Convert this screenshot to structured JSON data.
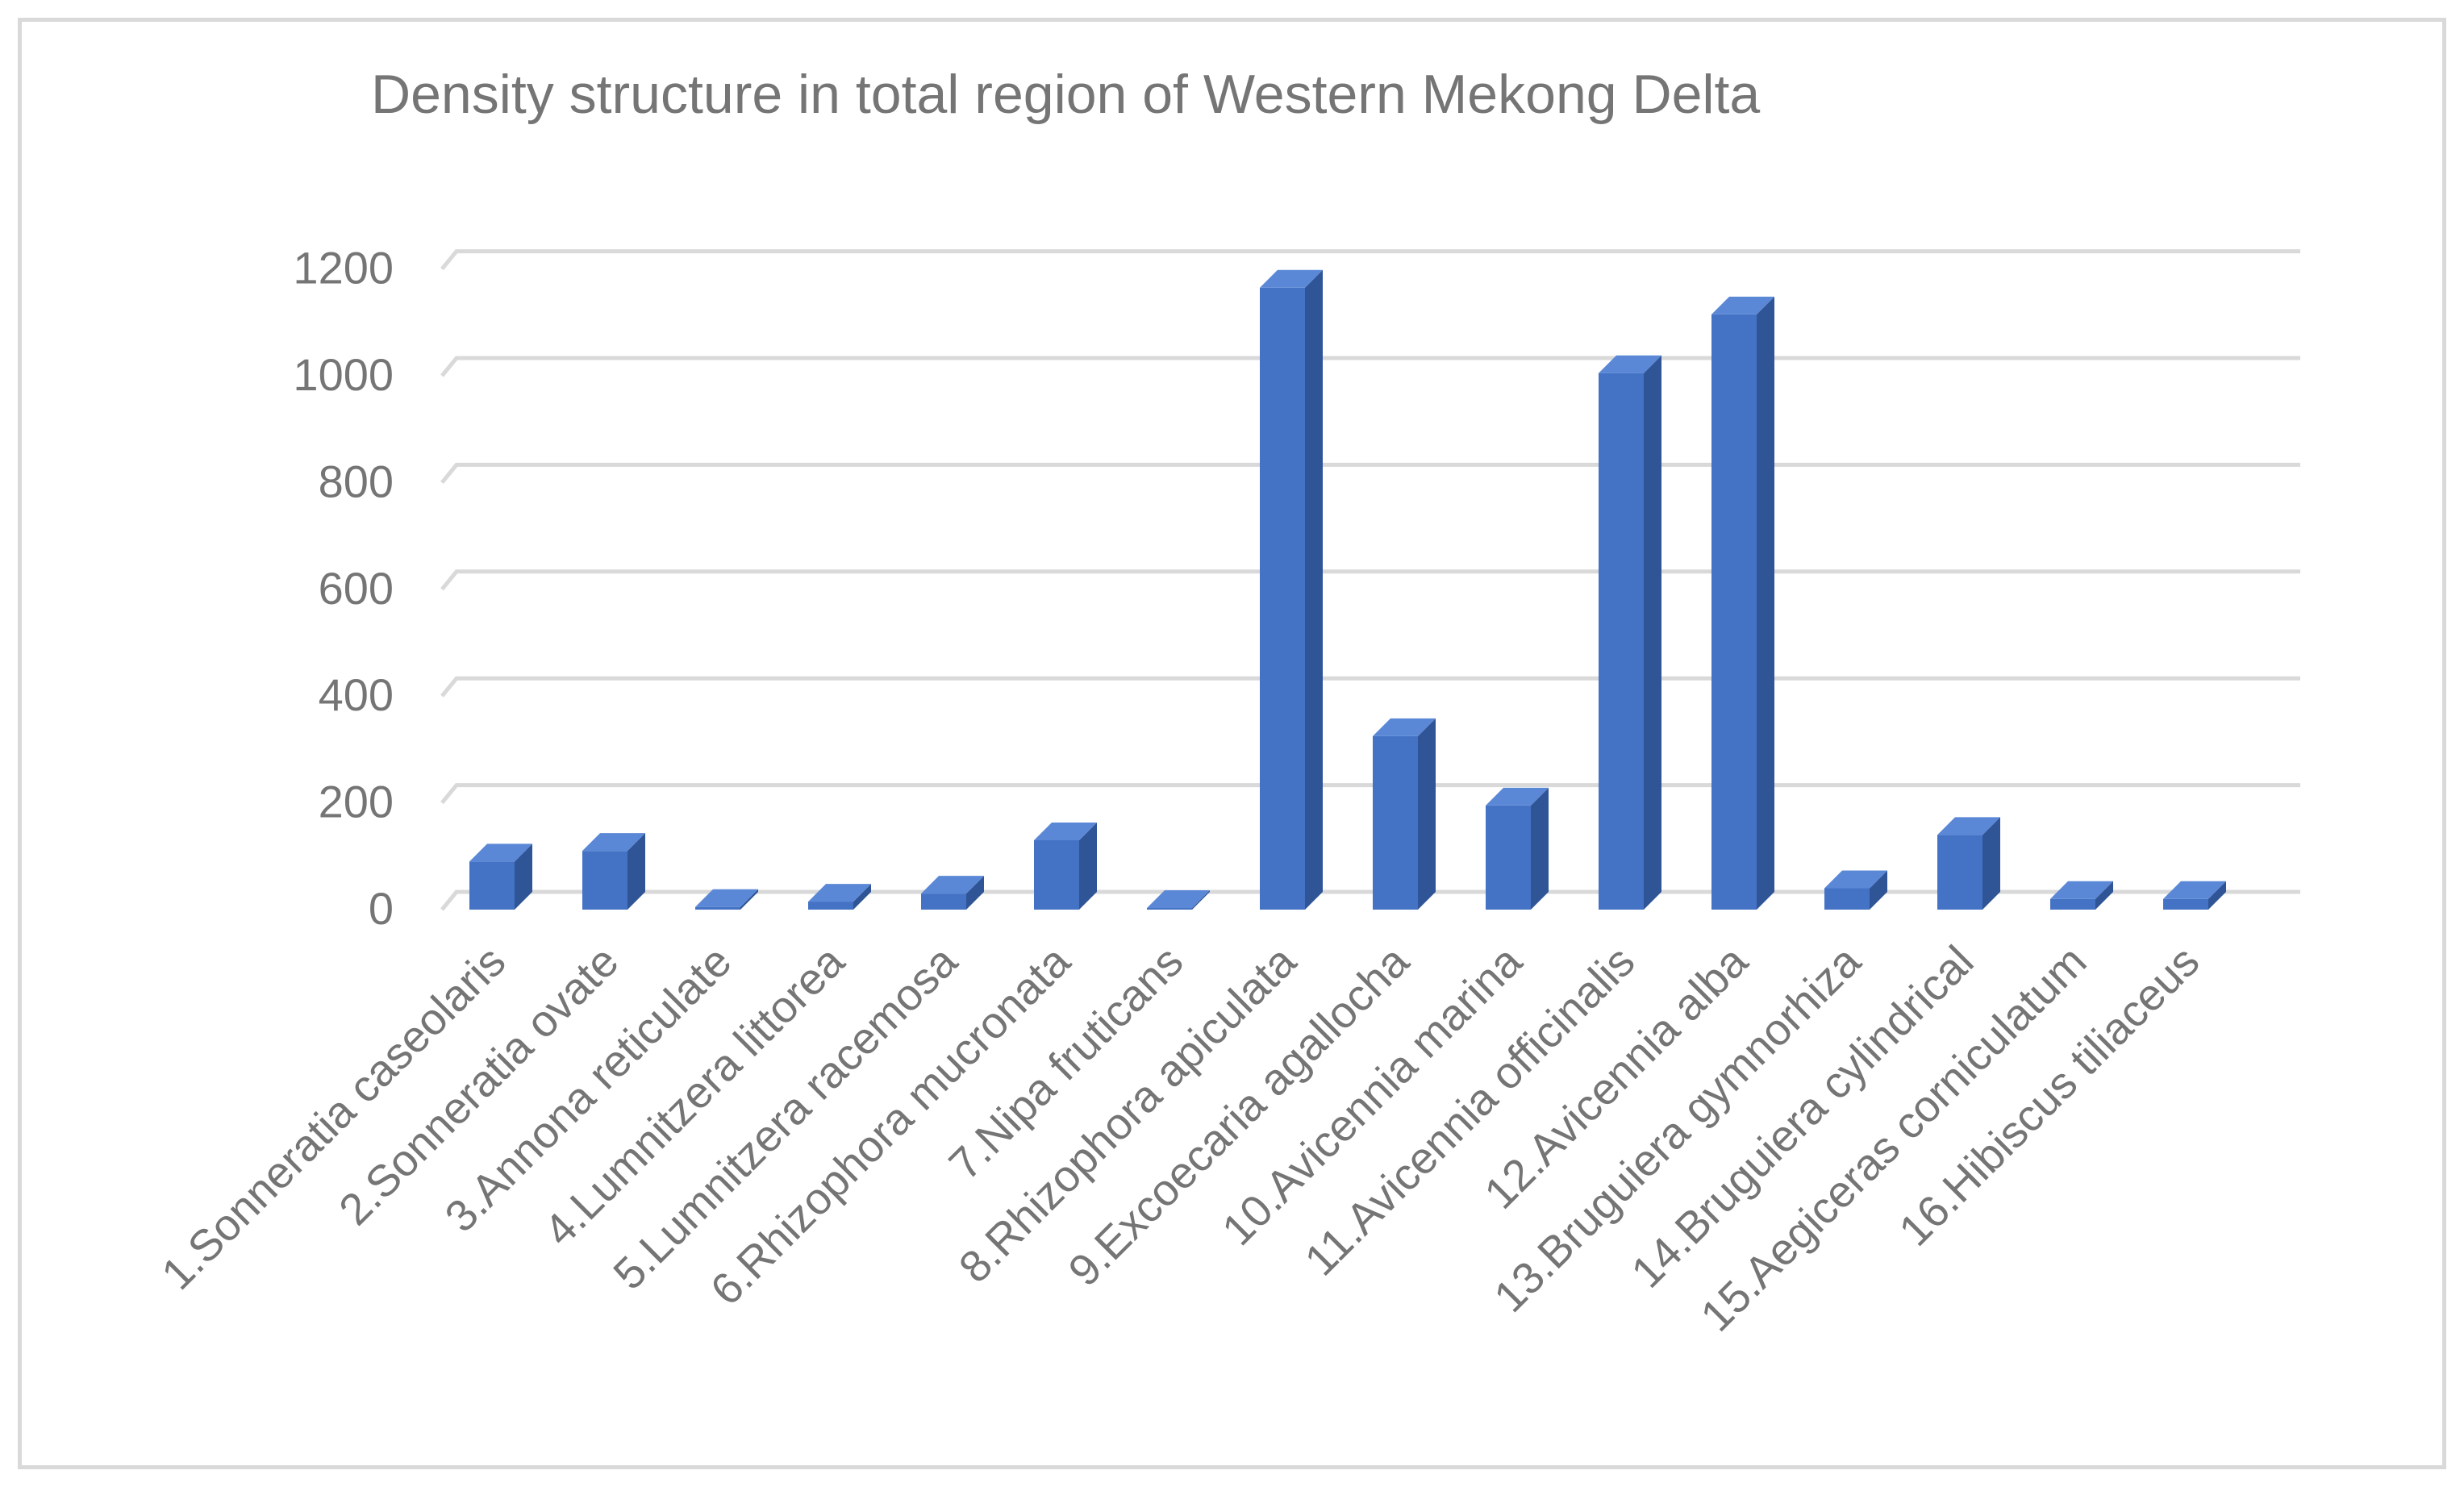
{
  "chart_data": {
    "type": "bar",
    "title": "Density structure in total region of Western Mekong Delta",
    "xlabel": "",
    "ylabel": "",
    "ylim": [
      0,
      1200
    ],
    "yticks": [
      0,
      200,
      400,
      600,
      800,
      1000,
      1200
    ],
    "grid": true,
    "legend": "none",
    "style": "3d-column",
    "categories": [
      "1.Sonneratia caseolaris",
      "2.Sonneratia ovate",
      "3.Annona reticulate",
      "4.Lumnitzera littorea",
      "5.Lumnitzera racemosa",
      "6.Rhizophora mucronata",
      "7.Nipa fruticans",
      "8.Rhizophora apiculata",
      "9.Excoecaria agallocha",
      "10.Avicennia marina",
      "11.Avicennia officinalis",
      "12.Avicennia alba",
      "13.Bruguiera gymnorhiza",
      "14.Bruguiera cylindrical",
      "15.Aegiceras corniculatum",
      "16.Hibiscus tiliaceus"
    ],
    "values": [
      90,
      110,
      5,
      15,
      30,
      130,
      3,
      1165,
      325,
      195,
      1005,
      1115,
      40,
      140,
      20,
      20
    ],
    "colors": {
      "bar_front": "#4472c4",
      "bar_side": "#2f5597",
      "bar_top": "#5b88d6",
      "gridline": "#d9d9d9",
      "text": "#757575"
    }
  }
}
